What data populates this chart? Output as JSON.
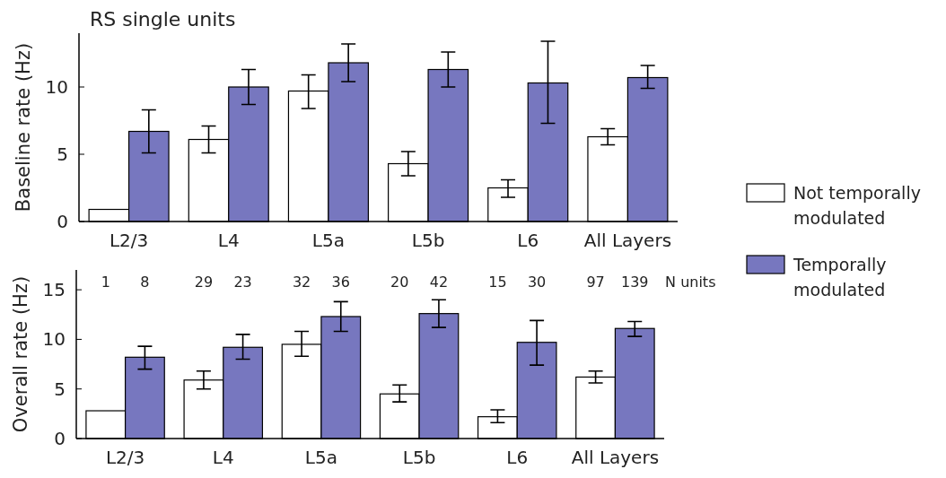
{
  "chart_data": [
    {
      "type": "bar",
      "title": "RS single units",
      "ylabel": "Baseline rate (Hz)",
      "categories": [
        "L2/3",
        "L4",
        "L5a",
        "L5b",
        "L6",
        "All Layers"
      ],
      "ylim": [
        0,
        14
      ],
      "yticks": [
        0,
        5,
        10
      ],
      "grid": false,
      "legend": "right",
      "series": [
        {
          "name": "Not temporally modulated",
          "color": "#ffffff",
          "values": [
            0.9,
            6.1,
            9.7,
            4.3,
            2.5,
            6.3
          ],
          "errors": [
            null,
            [
              5.1,
              7.1
            ],
            [
              8.4,
              10.9
            ],
            [
              3.4,
              5.2
            ],
            [
              1.8,
              3.1
            ],
            [
              5.7,
              6.9
            ]
          ]
        },
        {
          "name": "Temporally modulated",
          "color": "#7777bf",
          "values": [
            6.7,
            10.0,
            11.8,
            11.3,
            10.3,
            10.7
          ],
          "errors": [
            [
              5.1,
              8.3
            ],
            [
              8.7,
              11.3
            ],
            [
              10.4,
              13.2
            ],
            [
              10.0,
              12.6
            ],
            [
              7.3,
              13.4
            ],
            [
              9.9,
              11.6
            ]
          ]
        }
      ]
    },
    {
      "type": "bar",
      "ylabel": "Overall rate (Hz)",
      "categories": [
        "L2/3",
        "L4",
        "L5a",
        "L5b",
        "L6",
        "All Layers"
      ],
      "ylim": [
        0,
        17
      ],
      "yticks": [
        0,
        5,
        10,
        15
      ],
      "grid": false,
      "annotations": [
        "1",
        "8",
        "29",
        "23",
        "32",
        "36",
        "20",
        "42",
        "15",
        "30",
        "97",
        "139",
        "N units"
      ],
      "series": [
        {
          "color": "#ffffff",
          "values": [
            2.8,
            5.9,
            9.5,
            4.5,
            2.2,
            6.2
          ],
          "errors": [
            null,
            [
              5.0,
              6.8
            ],
            [
              8.3,
              10.8
            ],
            [
              3.7,
              5.4
            ],
            [
              1.6,
              2.9
            ],
            [
              5.6,
              6.8
            ]
          ]
        },
        {
          "color": "#7777bf",
          "values": [
            8.2,
            9.2,
            12.3,
            12.6,
            9.7,
            11.1
          ],
          "errors": [
            [
              7.0,
              9.3
            ],
            [
              8.0,
              10.5
            ],
            [
              10.8,
              13.8
            ],
            [
              11.2,
              14.0
            ],
            [
              7.4,
              11.9
            ],
            [
              10.3,
              11.8
            ]
          ]
        }
      ]
    }
  ]
}
